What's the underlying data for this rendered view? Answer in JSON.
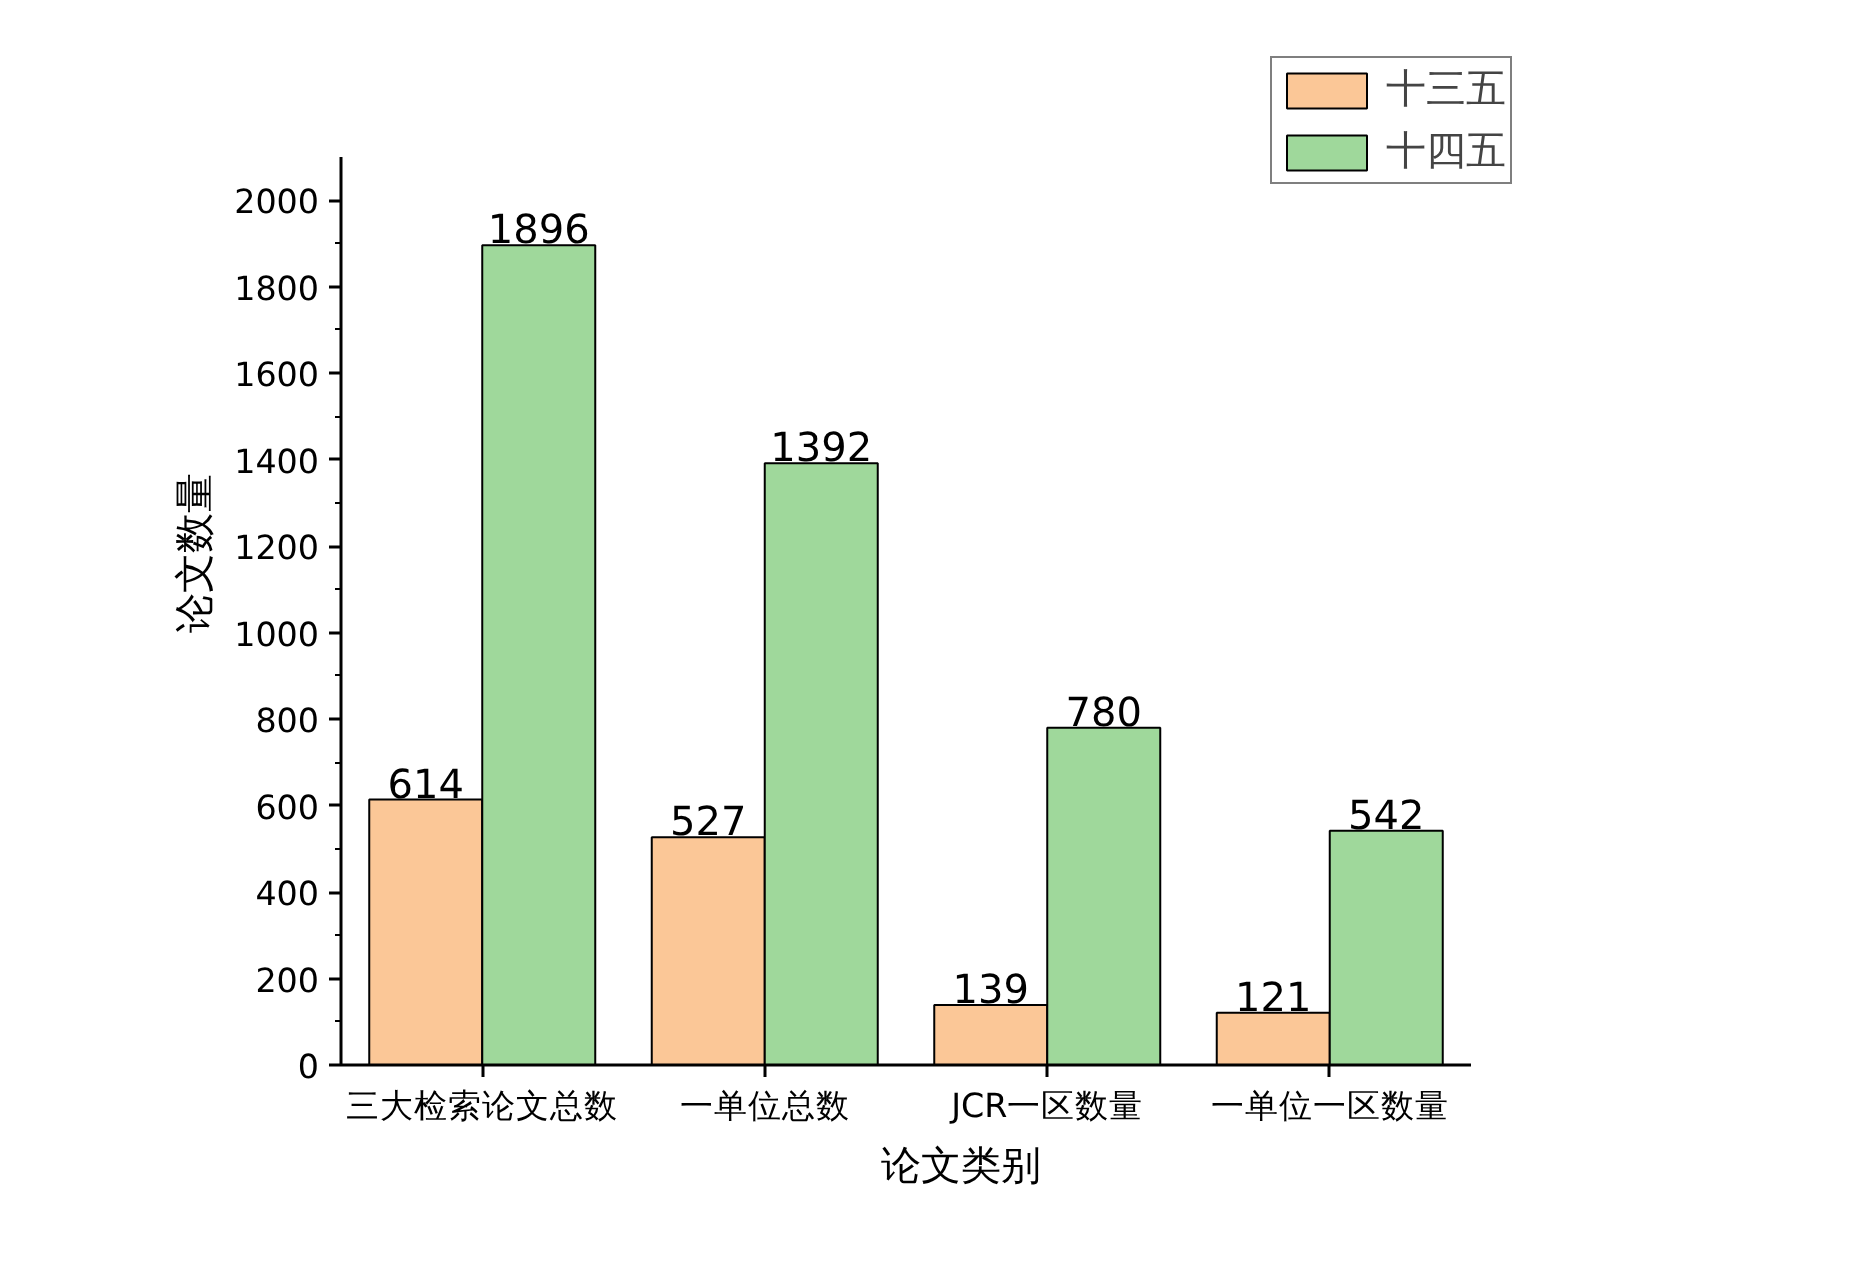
{
  "chart_data": {
    "type": "bar",
    "xlabel": "论文类别",
    "ylabel": "论文数量",
    "categories": [
      "三大检索论文总数",
      "一单位总数",
      "JCR一区数量",
      "一单位一区数量"
    ],
    "series": [
      {
        "name": "十三五",
        "color": "#fbc797",
        "values": [
          614,
          527,
          139,
          121
        ]
      },
      {
        "name": "十四五",
        "color": "#9fd89b",
        "values": [
          1896,
          1392,
          780,
          542
        ]
      }
    ],
    "ylim": [
      0,
      2100
    ],
    "yticks": [
      0,
      200,
      400,
      600,
      800,
      1000,
      1200,
      1400,
      1600,
      1800,
      2000
    ],
    "data_labels": true,
    "legend": "top right",
    "grid": false
  }
}
